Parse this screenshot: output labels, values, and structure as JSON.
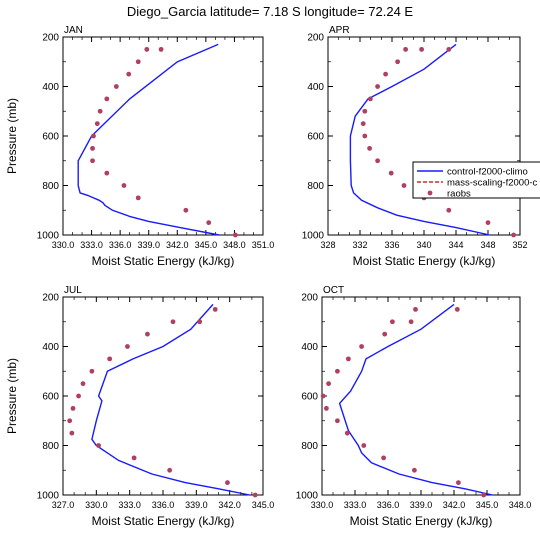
{
  "title": "Diego_Garcia  latitude= 7.18 S longitude= 72.24 E",
  "colors": {
    "line": "#1a1aff",
    "dashed": "#cc0000",
    "marker": "#b04060"
  },
  "legend": {
    "placement": "right of APR panel",
    "entries": [
      "control-f2000-climo",
      "mass-scaling-f2000-c",
      "raobs"
    ]
  },
  "chart_data": [
    {
      "type": "line",
      "panel_label": "JAN",
      "xlabel": "Moist Static Energy (kJ/kg)",
      "ylabel": "Pressure (mb)",
      "xlim": [
        330.0,
        351.0
      ],
      "ylim": [
        1000,
        200
      ],
      "xticks": [
        "330.0",
        "333.0",
        "336.0",
        "339.0",
        "342.0",
        "345.0",
        "348.0",
        "351.0"
      ],
      "yticks": [
        "200",
        "400",
        "600",
        "800",
        "1000"
      ],
      "series": [
        {
          "name": "control-f2000-climo",
          "style": "line",
          "x": [
            346.4,
            342.3,
            339.0,
            337.0,
            335.2,
            334.4,
            334.2,
            333.8,
            333.2,
            332.6,
            331.8,
            331.6,
            331.6,
            333.0,
            337.0,
            342.0,
            346.3
          ],
          "y": [
            1000,
            970,
            945,
            925,
            900,
            880,
            870,
            860,
            850,
            840,
            830,
            800,
            700,
            600,
            450,
            300,
            230
          ]
        },
        {
          "name": "raobs",
          "style": "markers",
          "x": [
            348.1,
            345.3,
            342.9,
            337.9,
            336.4,
            334.6,
            333.1,
            333.1,
            333.2,
            333.6,
            333.9,
            334.6,
            335.6,
            336.9,
            337.9,
            338.8,
            340.3
          ],
          "y": [
            1000,
            950,
            900,
            850,
            800,
            750,
            700,
            650,
            600,
            550,
            500,
            450,
            400,
            350,
            300,
            250,
            250
          ]
        }
      ]
    },
    {
      "type": "line",
      "panel_label": "APR",
      "xlabel": "Moist Static Energy (kJ/kg)",
      "ylabel": "",
      "xlim": [
        328,
        352
      ],
      "ylim": [
        1000,
        200
      ],
      "xticks": [
        "328",
        "332",
        "336",
        "340",
        "344",
        "348",
        "352"
      ],
      "yticks": [
        "200",
        "400",
        "600",
        "800",
        "1000"
      ],
      "series": [
        {
          "name": "control-f2000-climo",
          "style": "line",
          "x": [
            348.2,
            344.0,
            340.0,
            336.6,
            334.2,
            332.2,
            331.2,
            330.9,
            330.8,
            330.8,
            331.4,
            333.0,
            336.0,
            340.0,
            344.0
          ],
          "y": [
            1000,
            970,
            945,
            920,
            890,
            860,
            830,
            800,
            700,
            600,
            520,
            450,
            400,
            330,
            230
          ]
        },
        {
          "name": "raobs",
          "style": "markers",
          "x": [
            351.2,
            348.0,
            343.1,
            340.0,
            337.5,
            335.9,
            334.2,
            333.2,
            332.6,
            332.4,
            332.6,
            333.3,
            334.2,
            335.2,
            336.7,
            337.7,
            339.7,
            343.1
          ],
          "y": [
            1000,
            950,
            900,
            850,
            800,
            750,
            700,
            650,
            600,
            550,
            500,
            450,
            400,
            350,
            300,
            250,
            250,
            250
          ]
        }
      ]
    },
    {
      "type": "line",
      "panel_label": "JUL",
      "xlabel": "Moist Static Energy (kJ/kg)",
      "ylabel": "Pressure (mb)",
      "xlim": [
        327.0,
        345.0
      ],
      "ylim": [
        1000,
        200
      ],
      "xticks": [
        "327.0",
        "330.0",
        "333.0",
        "336.0",
        "339.0",
        "342.0",
        "345.0"
      ],
      "yticks": [
        "200",
        "400",
        "600",
        "800",
        "1000"
      ],
      "series": [
        {
          "name": "control-f2000-climo",
          "style": "line",
          "x": [
            343.8,
            341.0,
            338.0,
            335.0,
            332.0,
            330.0,
            329.6,
            330.0,
            330.5,
            330.2,
            331.0,
            333.3,
            336.0,
            338.5,
            340.5
          ],
          "y": [
            1000,
            975,
            950,
            915,
            860,
            800,
            775,
            700,
            620,
            600,
            500,
            450,
            400,
            330,
            230
          ]
        },
        {
          "name": "raobs",
          "style": "markers",
          "x": [
            344.3,
            341.8,
            336.6,
            333.4,
            330.2,
            327.8,
            327.6,
            327.9,
            328.4,
            328.8,
            329.6,
            331.2,
            332.8,
            334.6,
            336.9,
            339.3,
            340.7
          ],
          "y": [
            1000,
            950,
            900,
            850,
            800,
            750,
            700,
            650,
            600,
            550,
            500,
            450,
            400,
            350,
            300,
            300,
            250
          ]
        }
      ]
    },
    {
      "type": "line",
      "panel_label": "OCT",
      "xlabel": "Moist Static Energy (kJ/kg)",
      "ylabel": "",
      "xlim": [
        330.0,
        348.0
      ],
      "ylim": [
        1000,
        200
      ],
      "xticks": [
        "330.0",
        "333.0",
        "336.0",
        "339.0",
        "342.0",
        "345.0",
        "348.0"
      ],
      "yticks": [
        "200",
        "400",
        "600",
        "800",
        "1000"
      ],
      "series": [
        {
          "name": "control-f2000-climo",
          "style": "line",
          "x": [
            345.5,
            343.0,
            340.0,
            337.0,
            334.5,
            333.6,
            333.3,
            332.4,
            331.6,
            332.6,
            333.6,
            334.0,
            336.0,
            339.0,
            342.0
          ],
          "y": [
            1000,
            975,
            950,
            915,
            870,
            830,
            800,
            740,
            630,
            580,
            500,
            450,
            400,
            330,
            230
          ]
        },
        {
          "name": "raobs",
          "style": "markers",
          "x": [
            344.7,
            342.4,
            338.4,
            335.6,
            333.8,
            332.3,
            331.4,
            330.4,
            330.1,
            330.6,
            331.4,
            332.4,
            333.6,
            335.7,
            336.4,
            338.1,
            338.5,
            342.3
          ],
          "y": [
            1000,
            950,
            900,
            850,
            800,
            750,
            700,
            650,
            600,
            550,
            500,
            450,
            400,
            350,
            300,
            300,
            250,
            250
          ]
        }
      ]
    }
  ]
}
